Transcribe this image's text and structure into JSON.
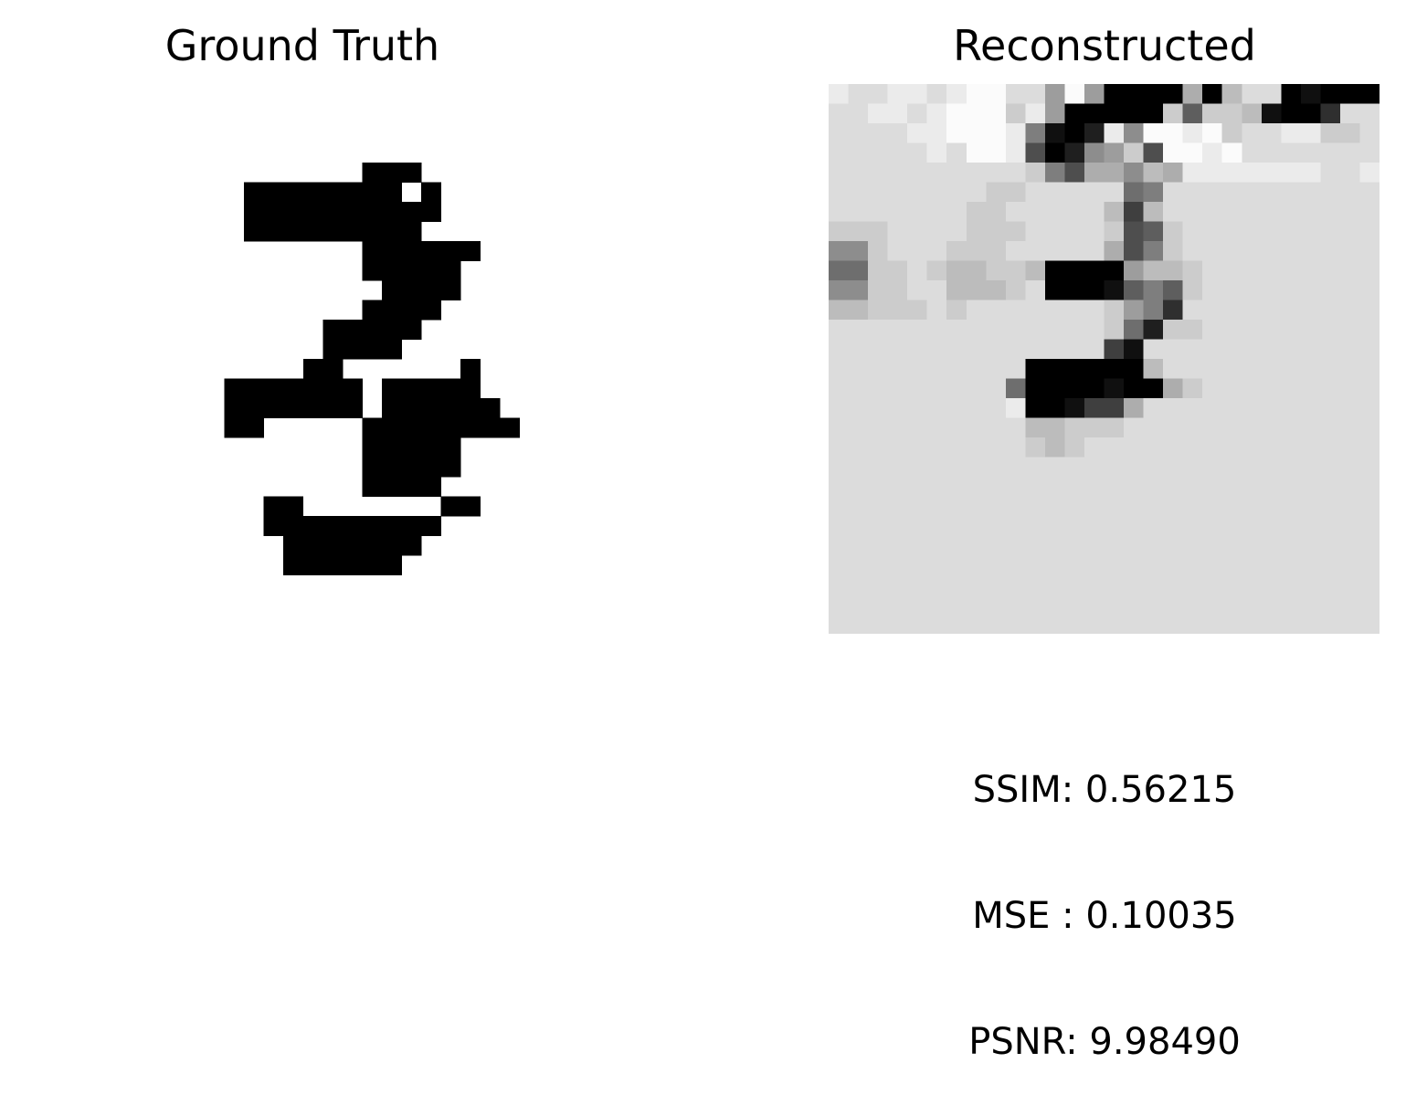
{
  "titles": {
    "left": "Ground Truth",
    "right": "Reconstructed"
  },
  "metrics": {
    "ssim": "SSIM: 0.56215",
    "mse": "MSE : 0.10035",
    "psnr": "PSNR: 9.98490"
  },
  "colors": {
    "ink": "#000000",
    "background": "#ffffff"
  },
  "ground_truth_rows": [
    "............................",
    "............................",
    "............................",
    "............................",
    "..........###...............",
    "....########.#..............",
    "....##########..............",
    "....#########...............",
    "..........######............",
    "..........#####.............",
    "...........####.............",
    "..........####..............",
    "........#####...............",
    "........####................",
    ".......##......#............",
    "...#######.#####............",
    "...#######.######...........",
    "...##.....########..........",
    "..........#####.............",
    "..........#####.............",
    "..........####..............",
    ".....##.......##............",
    ".....#########..............",
    "......#######...............",
    "......######................",
    "............................",
    "............................",
    "............................"
  ],
  "reconstructed_rows": [
    "FEEFFEFGGEEAGA0000B0CEE01000",
    "EEFFEFGGGDFA00000D6DDC1003EE",
    "EEEEFFGGGF8102F9GGFGDEEFFDDE",
    "EEEEEFEGGF5029AD5GGFGEEEEEEE",
    "EEEEEEEEEED85BB9CBFFFFFFFEEF",
    "EEEEEEEEDDEEEEE78EEEEEEEEEEE",
    "EEEEEEEDDEEEEEC4CEEEEEEEEEEE",
    "DDDEEEEDDDEEEED56DEEEEEEEEEE",
    "99DEEEDDDEEEEEB58DEEEEEEEEEE",
    "77DDEDCCDDC0000ACCDEEEEEEEEE",
    "99DDEECCCDE0001686DEEEEEEEEE",
    "CCDDDEDEEEEEEEDA83EEEEEEEEEE",
    "EEEEEEEEEEEEEED72DDEEEEEEEEE",
    "EEEEEEEEEEEEEE41EEEEEEEEEEEE",
    "EEEEEEEEEE000000CEEEEEEEEEEE",
    "EEEEEEEEE70000100BDEEEEEEEEE",
    "EEEEEEEEEF00144BEEEEEEEEEEEE",
    "EEEEEEEEEECCDDDEEEEEEEEEEEEE",
    "EEEEEEEEEEDCDEEEEEEEEEEEEEEE",
    "EEEEEEEEEEEEEEEEEEEEEEEEEEEE",
    "EEEEEEEEEEEEEEEEEEEEEEEEEEEE",
    "EEEEEEEEEEEEEEEEEEEEEEEEEEEE",
    "EEEEEEEEEEEEEEEEEEEEEEEEEEEE",
    "EEEEEEEEEEEEEEEEEEEEEEEEEEEE",
    "EEEEEEEEEEEEEEEEEEEEEEEEEEEE",
    "EEEEEEEEEEEEEEEEEEEEEEEEEEEE",
    "EEEEEEEEEEEEEEEEEEEEEEEEEEEE",
    "EEEEEEEEEEEEEEEEEEEEEEEEEEEE"
  ]
}
